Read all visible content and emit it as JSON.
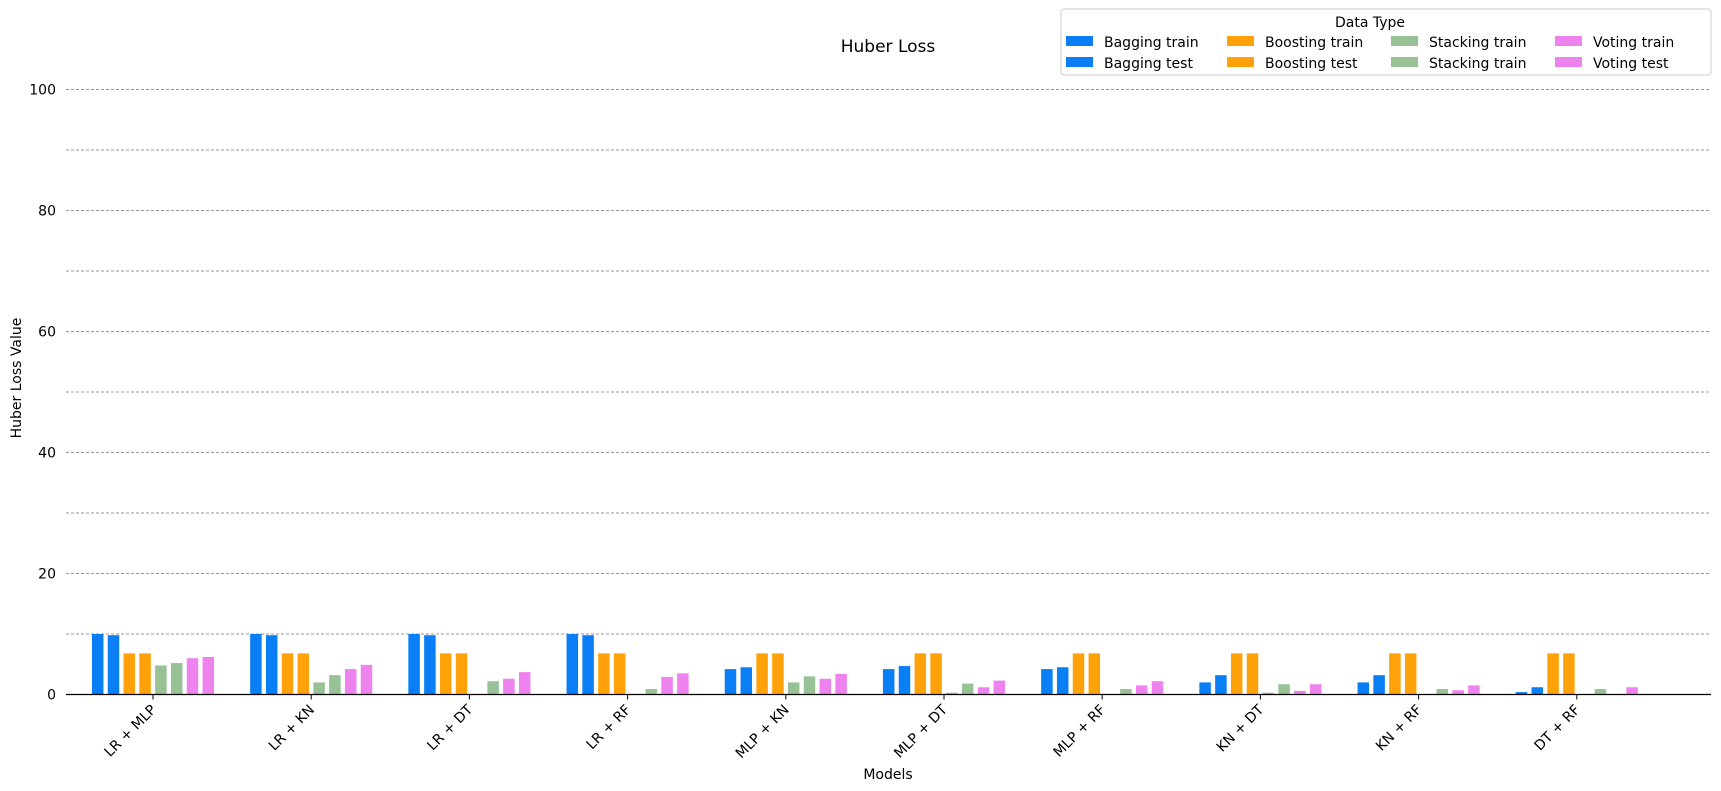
{
  "chart_data": {
    "type": "bar",
    "title": "Huber Loss",
    "xlabel": "Models",
    "ylabel": "Huber Loss Value",
    "ylim": [
      0,
      105
    ],
    "yticks": [
      0,
      20,
      40,
      60,
      80,
      100
    ],
    "grid": true,
    "grid_values": [
      10,
      20,
      30,
      40,
      50,
      60,
      70,
      80,
      90,
      100
    ],
    "categories": [
      "LR + MLP",
      "LR + KN",
      "LR + DT",
      "LR + RF",
      "MLP + KN",
      "MLP + DT",
      "MLP + RF",
      "KN + DT",
      "KN + RF",
      "DT + RF"
    ],
    "legend": {
      "title": "Data Type",
      "position": "top-right",
      "columns": 4
    },
    "series": [
      {
        "name": "Bagging train",
        "color": "#0a7ef5",
        "values": [
          10.0,
          10.0,
          10.0,
          10.0,
          4.2,
          4.2,
          4.2,
          2.0,
          2.0,
          0.4
        ]
      },
      {
        "name": "Bagging test",
        "color": "#0a7ef5",
        "values": [
          9.8,
          9.8,
          9.8,
          9.8,
          4.5,
          4.7,
          4.5,
          3.2,
          3.2,
          1.2
        ]
      },
      {
        "name": "Boosting train",
        "color": "#ffa20a",
        "values": [
          6.8,
          6.8,
          6.8,
          6.8,
          6.8,
          6.8,
          6.8,
          6.8,
          6.8,
          6.8
        ]
      },
      {
        "name": "Boosting test",
        "color": "#ffa20a",
        "values": [
          6.8,
          6.8,
          6.8,
          6.8,
          6.8,
          6.8,
          6.8,
          6.8,
          6.8,
          6.8
        ]
      },
      {
        "name": "Stacking train",
        "color": "#98c296",
        "values": [
          4.8,
          2.0,
          0.0,
          0.0,
          2.0,
          0.3,
          0.0,
          0.3,
          0.0,
          0.0
        ]
      },
      {
        "name": "Stacking train",
        "color": "#98c296",
        "values": [
          5.2,
          3.2,
          2.2,
          0.9,
          3.0,
          1.8,
          0.9,
          1.7,
          0.9,
          0.9
        ]
      },
      {
        "name": "Voting train",
        "color": "#ee82ee",
        "values": [
          6.0,
          4.2,
          2.6,
          2.9,
          2.6,
          1.2,
          1.5,
          0.6,
          0.7,
          0.0
        ]
      },
      {
        "name": "Voting test",
        "color": "#ee82ee",
        "values": [
          6.2,
          4.9,
          3.7,
          3.5,
          3.4,
          2.3,
          2.2,
          1.7,
          1.5,
          1.2
        ]
      }
    ]
  }
}
